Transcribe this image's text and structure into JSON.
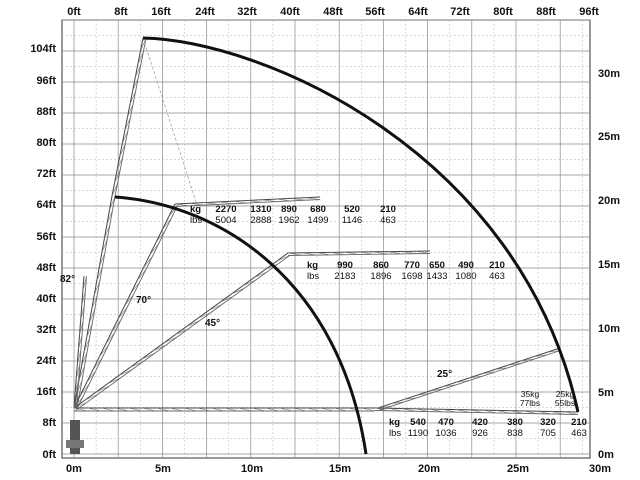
{
  "chart_data": {
    "type": "load-radius diagram",
    "top_axis_ft": [
      "0ft",
      "8ft",
      "16ft",
      "24ft",
      "32ft",
      "40ft",
      "48ft",
      "56ft",
      "64ft",
      "72ft",
      "80ft",
      "88ft",
      "96ft"
    ],
    "left_axis_ft": [
      "104ft",
      "96ft",
      "88ft",
      "80ft",
      "72ft",
      "64ft",
      "56ft",
      "48ft",
      "40ft",
      "32ft",
      "24ft",
      "16ft",
      "8ft",
      "0ft"
    ],
    "bottom_axis_m": [
      "0m",
      "5m",
      "10m",
      "15m",
      "20m",
      "25m",
      "30m"
    ],
    "right_axis_m": [
      "30m",
      "25m",
      "20m",
      "15m",
      "10m",
      "5m",
      "0m"
    ],
    "ranges": {
      "x_m": [
        0,
        30
      ],
      "y_m": [
        0,
        33
      ]
    },
    "grid": true,
    "angles": [
      "82°",
      "70°",
      "45°",
      "25°"
    ],
    "envelope_outer": "radius ~29 m",
    "envelope_inner": "radius ~17 m",
    "load_tables": [
      {
        "anchor": "70°",
        "kg": [
          "2270",
          "1310",
          "890",
          "680",
          "520",
          "210"
        ],
        "lbs": [
          "5004",
          "2888",
          "1962",
          "1499",
          "1146",
          "463"
        ]
      },
      {
        "anchor": "45°",
        "kg": [
          "990",
          "860",
          "770",
          "650",
          "490",
          "210"
        ],
        "lbs": [
          "2183",
          "1896",
          "1698",
          "1433",
          "1080",
          "463"
        ]
      },
      {
        "anchor": "0°",
        "kg": [
          "540",
          "470",
          "420",
          "380",
          "320",
          "210"
        ],
        "lbs": [
          "1190",
          "1036",
          "926",
          "838",
          "705",
          "463"
        ]
      }
    ],
    "tip_loads": {
      "kg_label": "35kg",
      "lbs_label": "77lbs",
      "kg2_label": "25kg",
      "lbs2_label": "55lbs"
    },
    "unit_labels": {
      "kg": "kg",
      "lbs": "lbs"
    }
  }
}
